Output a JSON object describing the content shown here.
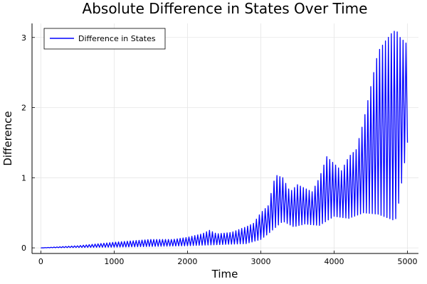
{
  "chart_data": {
    "type": "line",
    "title": "Absolute Difference in States Over Time",
    "xlabel": "Time",
    "ylabel": "Difference",
    "xlim": [
      -120,
      5150
    ],
    "ylim": [
      -0.08,
      3.2
    ],
    "xticks": [
      0,
      1000,
      2000,
      3000,
      4000,
      5000
    ],
    "yticks": [
      0,
      1,
      2,
      3
    ],
    "grid": true,
    "legend_position": "top-left",
    "series": [
      {
        "name": "Difference in States",
        "color": "#0000ff",
        "oscillation_period": 40,
        "lower_envelope": {
          "x": [
            0,
            1000,
            2000,
            2800,
            3000,
            3100,
            3300,
            3450,
            3600,
            3800,
            4000,
            4200,
            4400,
            4600,
            4800,
            4850,
            5000
          ],
          "y": [
            0,
            0.01,
            0.03,
            0.06,
            0.12,
            0.2,
            0.38,
            0.3,
            0.34,
            0.32,
            0.45,
            0.42,
            0.5,
            0.48,
            0.4,
            0.42,
            1.5
          ]
        },
        "upper_envelope": {
          "x": [
            0,
            500,
            1000,
            1500,
            1800,
            2000,
            2200,
            2300,
            2400,
            2600,
            2800,
            2900,
            3000,
            3100,
            3200,
            3300,
            3400,
            3500,
            3600,
            3700,
            3800,
            3900,
            4000,
            4100,
            4200,
            4300,
            4400,
            4500,
            4600,
            4700,
            4800,
            4850,
            4900,
            5000
          ],
          "y": [
            0,
            0.03,
            0.08,
            0.12,
            0.12,
            0.15,
            0.2,
            0.25,
            0.2,
            0.22,
            0.3,
            0.35,
            0.5,
            0.6,
            1.04,
            1.0,
            0.8,
            0.9,
            0.85,
            0.8,
            1.0,
            1.3,
            1.2,
            1.1,
            1.3,
            1.4,
            1.8,
            2.3,
            2.8,
            2.95,
            3.08,
            3.1,
            3.0,
            2.9
          ]
        }
      }
    ]
  }
}
